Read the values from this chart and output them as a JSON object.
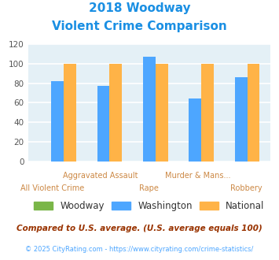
{
  "title_line1": "2018 Woodway",
  "title_line2": "Violent Crime Comparison",
  "title_color": "#1a8fe3",
  "categories_top": [
    "",
    "Aggravated Assault",
    "",
    "Murder & Mans...",
    ""
  ],
  "categories_bottom": [
    "All Violent Crime",
    "",
    "Rape",
    "",
    "Robbery"
  ],
  "woodway": [
    0,
    0,
    0,
    0,
    0
  ],
  "washington": [
    82,
    77,
    107,
    64,
    86
  ],
  "national": [
    100,
    100,
    100,
    100,
    100
  ],
  "woodway_color": "#7ab648",
  "washington_color": "#4da6ff",
  "national_color": "#ffb347",
  "ylim": [
    0,
    120
  ],
  "yticks": [
    0,
    20,
    40,
    60,
    80,
    100,
    120
  ],
  "background_color": "#e4f0f6",
  "grid_color": "#ffffff",
  "legend_labels": [
    "Woodway",
    "Washington",
    "National"
  ],
  "footnote1": "Compared to U.S. average. (U.S. average equals 100)",
  "footnote2": "© 2025 CityRating.com - https://www.cityrating.com/crime-statistics/",
  "footnote1_color": "#993300",
  "footnote2_color": "#4da6ff",
  "label_color": "#cc8844"
}
